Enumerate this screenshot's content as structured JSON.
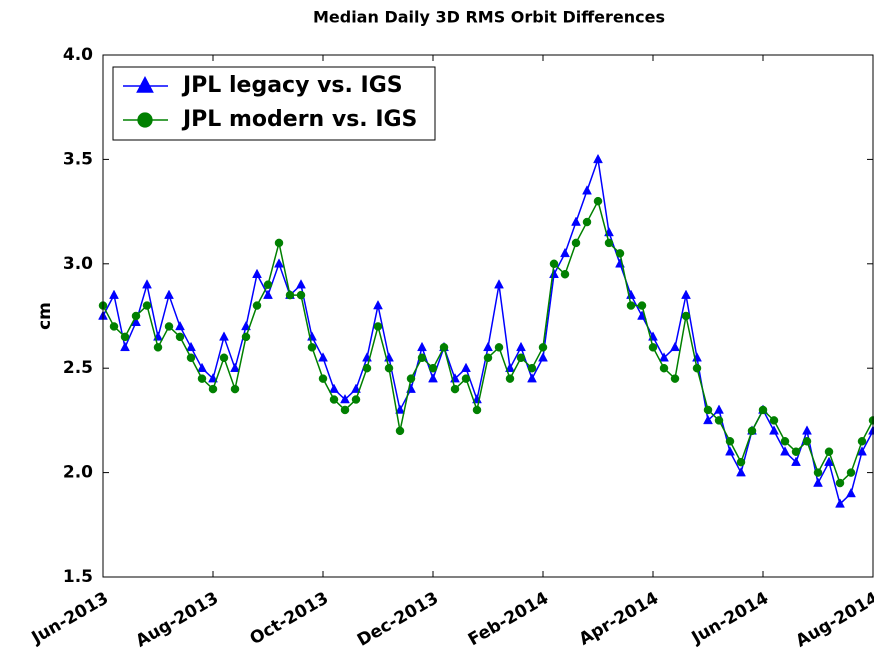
{
  "chart_data": {
    "type": "line",
    "title": "Median Daily 3D RMS Orbit Differences",
    "ylabel": "cm",
    "x": [
      0,
      0.2,
      0.4,
      0.6,
      0.8,
      1,
      1.2,
      1.4,
      1.6,
      1.8,
      2,
      2.2,
      2.4,
      2.6,
      2.8,
      3,
      3.2,
      3.4,
      3.6,
      3.8,
      4,
      4.2,
      4.4,
      4.6,
      4.8,
      5,
      5.2,
      5.4,
      5.6,
      5.8,
      6,
      6.2,
      6.4,
      6.6,
      6.8,
      7,
      7.2,
      7.4,
      7.6,
      7.8,
      8,
      8.2,
      8.4,
      8.6,
      8.8,
      9,
      9.2,
      9.4,
      9.6,
      9.8,
      10,
      10.2,
      10.4,
      10.6,
      10.8,
      11,
      11.2,
      11.4,
      11.6,
      11.8,
      12,
      12.2,
      12.4,
      12.6,
      12.8,
      13,
      13.2,
      13.4,
      13.6,
      13.8,
      14
    ],
    "series": [
      {
        "name": "JPL legacy vs. IGS",
        "color": "#0000ff",
        "marker": "triangle",
        "values": [
          2.75,
          2.85,
          2.6,
          2.72,
          2.9,
          2.65,
          2.85,
          2.7,
          2.6,
          2.5,
          2.45,
          2.65,
          2.5,
          2.7,
          2.95,
          2.85,
          3.0,
          2.85,
          2.9,
          2.65,
          2.55,
          2.4,
          2.35,
          2.4,
          2.55,
          2.8,
          2.55,
          2.3,
          2.4,
          2.6,
          2.45,
          2.6,
          2.45,
          2.5,
          2.35,
          2.6,
          2.9,
          2.5,
          2.6,
          2.45,
          2.55,
          2.95,
          3.05,
          3.2,
          3.35,
          3.5,
          3.15,
          3.0,
          2.85,
          2.75,
          2.65,
          2.55,
          2.6,
          2.85,
          2.55,
          2.25,
          2.3,
          2.1,
          2.0,
          2.2,
          2.3,
          2.2,
          2.1,
          2.05,
          2.2,
          1.95,
          2.05,
          1.85,
          1.9,
          2.1,
          2.2
        ]
      },
      {
        "name": "JPL modern vs. IGS",
        "color": "#008000",
        "marker": "circle",
        "values": [
          2.8,
          2.7,
          2.65,
          2.75,
          2.8,
          2.6,
          2.7,
          2.65,
          2.55,
          2.45,
          2.4,
          2.55,
          2.4,
          2.65,
          2.8,
          2.9,
          3.1,
          2.85,
          2.85,
          2.6,
          2.45,
          2.35,
          2.3,
          2.35,
          2.5,
          2.7,
          2.5,
          2.2,
          2.45,
          2.55,
          2.5,
          2.6,
          2.4,
          2.45,
          2.3,
          2.55,
          2.6,
          2.45,
          2.55,
          2.5,
          2.6,
          3.0,
          2.95,
          3.1,
          3.2,
          3.3,
          3.1,
          3.05,
          2.8,
          2.8,
          2.6,
          2.5,
          2.45,
          2.75,
          2.5,
          2.3,
          2.25,
          2.15,
          2.05,
          2.2,
          2.3,
          2.25,
          2.15,
          2.1,
          2.15,
          2.0,
          2.1,
          1.95,
          2.0,
          2.15,
          2.25
        ]
      }
    ],
    "xlim": [
      0,
      14
    ],
    "xticks": [
      {
        "value": 0,
        "label": "Jun-2013"
      },
      {
        "value": 2,
        "label": "Aug-2013"
      },
      {
        "value": 4,
        "label": "Oct-2013"
      },
      {
        "value": 6,
        "label": "Dec-2013"
      },
      {
        "value": 8,
        "label": "Feb-2014"
      },
      {
        "value": 10,
        "label": "Apr-2014"
      },
      {
        "value": 12,
        "label": "Jun-2014"
      },
      {
        "value": 14,
        "label": "Aug-2014"
      }
    ],
    "ylim": [
      1.5,
      4.0
    ],
    "yticks": [
      {
        "value": 1.5,
        "label": "1.5"
      },
      {
        "value": 2.0,
        "label": "2.0"
      },
      {
        "value": 2.5,
        "label": "2.5"
      },
      {
        "value": 3.0,
        "label": "3.0"
      },
      {
        "value": 3.5,
        "label": "3.5"
      },
      {
        "value": 4.0,
        "label": "4.0"
      }
    ],
    "legend": "upper left"
  }
}
